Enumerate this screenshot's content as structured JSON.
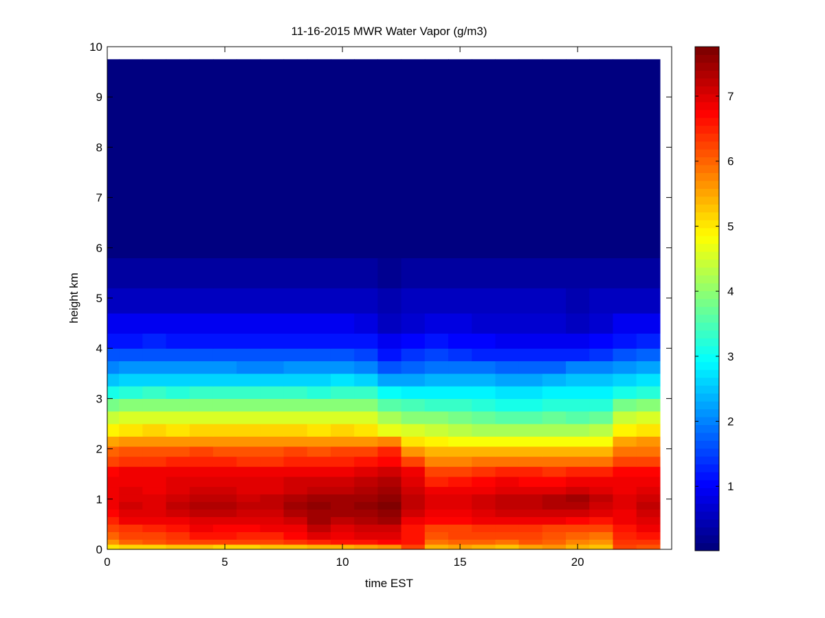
{
  "chart_data": {
    "type": "heatmap",
    "title": "11-16-2015 MWR Water Vapor (g/m3)",
    "xlabel": "time EST",
    "ylabel": "height km",
    "xlim": [
      0,
      24
    ],
    "ylim": [
      0,
      10
    ],
    "xticks": [
      "0",
      "5",
      "10",
      "15",
      "20"
    ],
    "yticks": [
      "0",
      "1",
      "2",
      "3",
      "4",
      "5",
      "6",
      "7",
      "8",
      "9",
      "10"
    ],
    "colorbar": {
      "clim": [
        0.01,
        7.76
      ],
      "ticks": [
        "1",
        "2",
        "3",
        "4",
        "5",
        "6",
        "7"
      ],
      "colormap": "jet"
    },
    "time_centers": [
      0,
      1,
      2,
      3,
      4,
      5,
      6,
      7,
      8,
      9,
      10,
      11,
      12,
      13,
      14,
      15,
      16,
      17,
      18,
      19,
      20,
      21,
      22,
      23
    ],
    "time_max": 23.5,
    "height_edges": [
      0,
      0.1,
      0.2,
      0.35,
      0.5,
      0.65,
      0.8,
      0.95,
      1.1,
      1.25,
      1.45,
      1.65,
      1.85,
      2.05,
      2.25,
      2.5,
      2.75,
      3.0,
      3.25,
      3.5,
      3.75,
      4.0,
      4.3,
      4.7,
      5.2,
      5.8,
      9.75
    ],
    "values": [
      [
        5.0,
        5.2,
        5.2,
        5.3,
        5.3,
        5.2,
        5.2,
        5.3,
        5.3,
        5.4,
        5.4,
        5.5,
        5.6,
        6.3,
        5.4,
        5.5,
        5.4,
        5.3,
        5.5,
        5.6,
        5.4,
        5.3,
        6.2,
        6.1
      ],
      [
        5.6,
        6.0,
        6.1,
        6.2,
        6.3,
        6.2,
        6.3,
        6.3,
        6.4,
        6.5,
        6.6,
        6.6,
        6.7,
        6.6,
        5.9,
        6.0,
        6.0,
        5.9,
        6.1,
        6.0,
        5.8,
        5.6,
        6.4,
        6.4
      ],
      [
        6.0,
        6.2,
        6.3,
        6.4,
        6.6,
        6.6,
        6.5,
        6.5,
        6.7,
        7.0,
        6.9,
        7.0,
        7.0,
        6.6,
        6.1,
        6.2,
        6.2,
        6.2,
        6.3,
        6.1,
        6.0,
        5.9,
        6.5,
        6.6
      ],
      [
        6.2,
        6.4,
        6.5,
        6.6,
        6.8,
        6.7,
        6.7,
        6.8,
        6.9,
        7.2,
        7.0,
        7.1,
        7.1,
        6.6,
        6.3,
        6.3,
        6.4,
        6.4,
        6.4,
        6.3,
        6.3,
        6.2,
        6.6,
        6.8
      ],
      [
        6.5,
        6.8,
        6.8,
        6.9,
        7.0,
        7.0,
        7.0,
        7.0,
        7.1,
        7.4,
        7.2,
        7.3,
        7.4,
        6.9,
        6.7,
        6.7,
        6.8,
        6.8,
        6.8,
        6.8,
        6.7,
        6.6,
        6.8,
        7.0
      ],
      [
        6.7,
        7.0,
        7.0,
        7.1,
        7.2,
        7.2,
        7.1,
        7.1,
        7.3,
        7.5,
        7.4,
        7.5,
        7.6,
        7.1,
        6.9,
        6.9,
        7.0,
        7.1,
        7.1,
        7.1,
        7.1,
        7.0,
        6.9,
        7.1
      ],
      [
        6.8,
        7.1,
        7.0,
        7.2,
        7.3,
        7.3,
        7.2,
        7.2,
        7.4,
        7.6,
        7.5,
        7.6,
        7.7,
        7.2,
        7.0,
        7.0,
        7.1,
        7.2,
        7.2,
        7.3,
        7.3,
        7.1,
        7.0,
        7.2
      ],
      [
        6.8,
        7.0,
        7.0,
        7.1,
        7.2,
        7.2,
        7.1,
        7.2,
        7.3,
        7.5,
        7.4,
        7.5,
        7.6,
        7.2,
        7.0,
        7.0,
        7.1,
        7.2,
        7.2,
        7.3,
        7.4,
        7.2,
        7.0,
        7.1
      ],
      [
        6.9,
        7.0,
        6.9,
        7.0,
        7.1,
        7.1,
        7.0,
        7.0,
        7.1,
        7.2,
        7.2,
        7.3,
        7.4,
        7.1,
        6.8,
        6.8,
        6.9,
        7.0,
        7.0,
        7.0,
        7.1,
        7.0,
        6.9,
        7.0
      ],
      [
        6.9,
        6.9,
        6.9,
        7.0,
        7.0,
        7.0,
        7.0,
        7.0,
        7.1,
        7.1,
        7.1,
        7.2,
        7.3,
        7.0,
        6.5,
        6.6,
        6.7,
        6.8,
        6.7,
        6.7,
        6.8,
        6.8,
        6.8,
        6.8
      ],
      [
        6.7,
        6.8,
        6.8,
        6.8,
        6.9,
        6.9,
        6.8,
        6.8,
        6.9,
        6.9,
        6.9,
        7.0,
        7.1,
        6.8,
        6.2,
        6.3,
        6.4,
        6.5,
        6.5,
        6.4,
        6.5,
        6.5,
        6.7,
        6.7
      ],
      [
        6.3,
        6.4,
        6.4,
        6.5,
        6.5,
        6.5,
        6.4,
        6.4,
        6.5,
        6.5,
        6.5,
        6.6,
        6.7,
        6.2,
        5.8,
        5.8,
        5.9,
        5.9,
        5.9,
        5.9,
        5.9,
        5.9,
        6.3,
        6.2
      ],
      [
        6.0,
        6.1,
        6.1,
        6.1,
        6.2,
        6.1,
        6.1,
        6.1,
        6.2,
        6.1,
        6.2,
        6.2,
        6.5,
        5.7,
        5.4,
        5.4,
        5.4,
        5.4,
        5.4,
        5.4,
        5.4,
        5.4,
        5.9,
        5.9
      ],
      [
        5.5,
        5.6,
        5.6,
        5.6,
        5.7,
        5.6,
        5.6,
        5.6,
        5.7,
        5.6,
        5.7,
        5.6,
        5.8,
        5.0,
        4.9,
        4.8,
        4.8,
        4.8,
        4.8,
        4.8,
        4.8,
        4.8,
        5.5,
        5.6
      ],
      [
        4.9,
        5.0,
        5.1,
        5.0,
        5.1,
        5.1,
        5.1,
        5.1,
        5.1,
        5.0,
        5.1,
        5.0,
        4.7,
        4.5,
        4.4,
        4.3,
        4.2,
        4.2,
        4.2,
        4.2,
        4.2,
        4.3,
        4.9,
        5.0
      ],
      [
        4.4,
        4.5,
        4.6,
        4.5,
        4.6,
        4.6,
        4.6,
        4.6,
        4.6,
        4.5,
        4.6,
        4.5,
        4.2,
        4.0,
        3.9,
        3.8,
        3.7,
        3.6,
        3.6,
        3.7,
        3.6,
        3.7,
        4.4,
        4.5
      ],
      [
        3.8,
        3.9,
        4.0,
        3.9,
        4.0,
        4.0,
        4.0,
        4.0,
        4.0,
        3.9,
        4.0,
        3.9,
        3.6,
        3.5,
        3.4,
        3.3,
        3.2,
        3.1,
        3.1,
        3.2,
        3.2,
        3.2,
        3.8,
        3.9
      ],
      [
        3.1,
        3.2,
        3.3,
        3.2,
        3.3,
        3.3,
        3.3,
        3.3,
        3.3,
        3.2,
        3.3,
        3.3,
        3.0,
        2.9,
        2.8,
        2.8,
        2.8,
        2.7,
        2.7,
        2.8,
        2.8,
        2.8,
        3.1,
        3.2
      ],
      [
        2.5,
        2.6,
        2.6,
        2.6,
        2.6,
        2.6,
        2.6,
        2.6,
        2.6,
        2.6,
        2.7,
        2.6,
        2.3,
        2.3,
        2.4,
        2.4,
        2.4,
        2.3,
        2.3,
        2.4,
        2.5,
        2.5,
        2.6,
        2.7
      ],
      [
        2.0,
        2.1,
        2.1,
        2.1,
        2.1,
        2.1,
        2.0,
        2.0,
        2.1,
        2.1,
        2.1,
        2.0,
        1.7,
        1.8,
        1.9,
        1.9,
        1.9,
        1.8,
        1.8,
        1.8,
        2.0,
        2.0,
        2.1,
        2.2
      ],
      [
        1.6,
        1.7,
        1.7,
        1.6,
        1.7,
        1.6,
        1.6,
        1.6,
        1.7,
        1.6,
        1.7,
        1.5,
        1.2,
        1.4,
        1.5,
        1.4,
        1.3,
        1.3,
        1.3,
        1.3,
        1.3,
        1.4,
        1.7,
        1.8
      ],
      [
        1.2,
        1.2,
        1.3,
        1.2,
        1.2,
        1.2,
        1.2,
        1.2,
        1.2,
        1.2,
        1.2,
        1.1,
        0.9,
        1.0,
        1.1,
        1.0,
        1.0,
        0.9,
        0.9,
        0.9,
        0.9,
        1.0,
        1.2,
        1.3
      ],
      [
        0.9,
        0.9,
        0.9,
        0.9,
        0.9,
        0.9,
        0.9,
        0.9,
        0.9,
        0.9,
        0.9,
        0.8,
        0.6,
        0.7,
        0.8,
        0.8,
        0.7,
        0.7,
        0.7,
        0.7,
        0.6,
        0.7,
        0.9,
        0.9
      ],
      [
        0.6,
        0.6,
        0.6,
        0.6,
        0.6,
        0.6,
        0.6,
        0.6,
        0.6,
        0.6,
        0.6,
        0.5,
        0.4,
        0.5,
        0.5,
        0.5,
        0.5,
        0.5,
        0.5,
        0.5,
        0.4,
        0.5,
        0.6,
        0.6
      ],
      [
        0.35,
        0.35,
        0.35,
        0.35,
        0.35,
        0.35,
        0.35,
        0.35,
        0.35,
        0.35,
        0.35,
        0.3,
        0.25,
        0.3,
        0.3,
        0.3,
        0.3,
        0.3,
        0.3,
        0.3,
        0.3,
        0.3,
        0.35,
        0.35
      ],
      [
        0.1,
        0.1,
        0.1,
        0.1,
        0.1,
        0.1,
        0.1,
        0.1,
        0.1,
        0.1,
        0.1,
        0.1,
        0.1,
        0.1,
        0.1,
        0.1,
        0.1,
        0.1,
        0.1,
        0.1,
        0.1,
        0.1,
        0.1,
        0.1
      ]
    ]
  }
}
